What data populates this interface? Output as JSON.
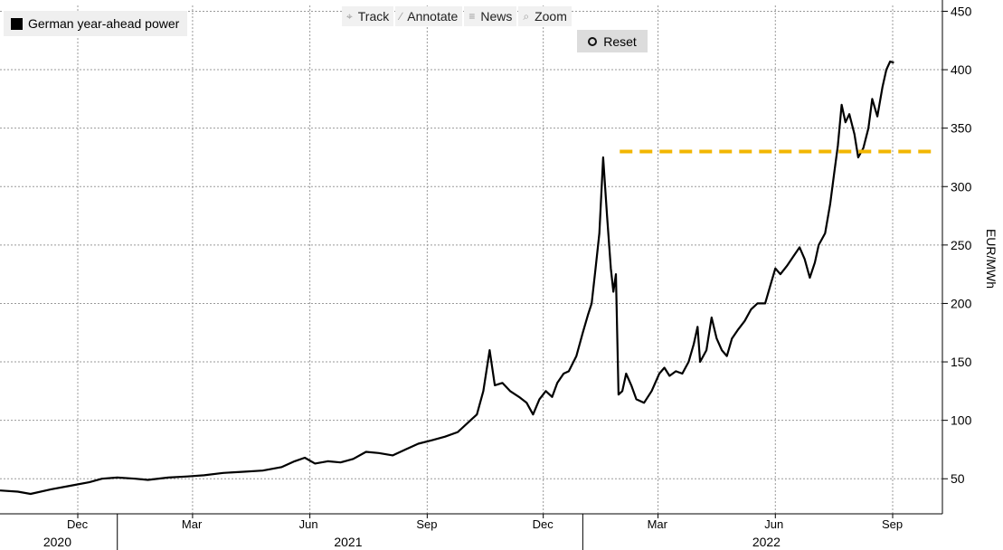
{
  "legend": {
    "label": "German year-ahead power",
    "swatch_color": "#000000"
  },
  "toolbar": [
    {
      "name": "track",
      "label": "Track",
      "icon": "crosshair-icon"
    },
    {
      "name": "annotate",
      "label": "Annotate",
      "icon": "pencil-icon"
    },
    {
      "name": "news",
      "label": "News",
      "icon": "news-icon"
    },
    {
      "name": "zoom",
      "label": "Zoom",
      "icon": "magnifier-icon"
    }
  ],
  "reset": {
    "label": "Reset",
    "icon": "reset-circle-icon"
  },
  "chart_data": {
    "type": "line",
    "ylabel": "EUR/MWh",
    "y_axis_position": "right",
    "ylim": [
      20,
      455
    ],
    "yticks": [
      50,
      100,
      150,
      200,
      250,
      300,
      350,
      400,
      450
    ],
    "xlim": [
      "2020-10-01",
      "2022-10-10"
    ],
    "x_month_ticks": [
      {
        "date": "2020-12-01",
        "label": "Dec"
      },
      {
        "date": "2021-03-01",
        "label": "Mar"
      },
      {
        "date": "2021-06-01",
        "label": "Jun"
      },
      {
        "date": "2021-09-01",
        "label": "Sep"
      },
      {
        "date": "2021-12-01",
        "label": "Dec"
      },
      {
        "date": "2022-03-01",
        "label": "Mar"
      },
      {
        "date": "2022-06-01",
        "label": "Jun"
      },
      {
        "date": "2022-09-01",
        "label": "Sep"
      }
    ],
    "x_year_labels": [
      {
        "label": "2020",
        "center": "2020-11-15"
      },
      {
        "label": "2021",
        "center": "2021-07-01"
      },
      {
        "label": "2022",
        "center": "2022-05-25"
      }
    ],
    "year_separators": [
      "2021-01-01",
      "2022-01-01"
    ],
    "grid": true,
    "line_color": "#000000",
    "series": [
      {
        "name": "German year-ahead power",
        "points": [
          [
            "2020-10-01",
            40
          ],
          [
            "2020-10-15",
            39
          ],
          [
            "2020-10-25",
            37
          ],
          [
            "2020-11-10",
            41
          ],
          [
            "2020-11-25",
            44
          ],
          [
            "2020-12-10",
            47
          ],
          [
            "2020-12-20",
            50
          ],
          [
            "2021-01-01",
            51
          ],
          [
            "2021-01-15",
            50
          ],
          [
            "2021-01-25",
            49
          ],
          [
            "2021-02-10",
            51
          ],
          [
            "2021-02-25",
            52
          ],
          [
            "2021-03-10",
            53
          ],
          [
            "2021-03-25",
            55
          ],
          [
            "2021-04-10",
            56
          ],
          [
            "2021-04-25",
            57
          ],
          [
            "2021-05-10",
            60
          ],
          [
            "2021-05-20",
            65
          ],
          [
            "2021-05-28",
            68
          ],
          [
            "2021-06-05",
            63
          ],
          [
            "2021-06-15",
            65
          ],
          [
            "2021-06-25",
            64
          ],
          [
            "2021-07-05",
            67
          ],
          [
            "2021-07-15",
            73
          ],
          [
            "2021-07-25",
            72
          ],
          [
            "2021-08-05",
            70
          ],
          [
            "2021-08-15",
            75
          ],
          [
            "2021-08-25",
            80
          ],
          [
            "2021-09-05",
            83
          ],
          [
            "2021-09-15",
            86
          ],
          [
            "2021-09-25",
            90
          ],
          [
            "2021-10-05",
            100
          ],
          [
            "2021-10-10",
            105
          ],
          [
            "2021-10-15",
            125
          ],
          [
            "2021-10-20",
            160
          ],
          [
            "2021-10-24",
            130
          ],
          [
            "2021-10-30",
            132
          ],
          [
            "2021-11-05",
            125
          ],
          [
            "2021-11-12",
            120
          ],
          [
            "2021-11-18",
            115
          ],
          [
            "2021-11-23",
            105
          ],
          [
            "2021-11-28",
            118
          ],
          [
            "2021-12-03",
            125
          ],
          [
            "2021-12-08",
            120
          ],
          [
            "2021-12-12",
            132
          ],
          [
            "2021-12-17",
            140
          ],
          [
            "2021-12-21",
            142
          ],
          [
            "2021-12-27",
            155
          ],
          [
            "2022-01-01",
            175
          ],
          [
            "2022-01-05",
            190
          ],
          [
            "2022-01-08",
            200
          ],
          [
            "2022-01-11",
            230
          ],
          [
            "2022-01-14",
            260
          ],
          [
            "2022-01-17",
            325
          ],
          [
            "2022-01-20",
            275
          ],
          [
            "2022-01-23",
            230
          ],
          [
            "2022-01-25",
            210
          ],
          [
            "2022-01-27",
            225
          ],
          [
            "2022-01-29",
            122
          ],
          [
            "2022-02-01",
            125
          ],
          [
            "2022-02-04",
            140
          ],
          [
            "2022-02-08",
            130
          ],
          [
            "2022-02-12",
            118
          ],
          [
            "2022-02-18",
            115
          ],
          [
            "2022-02-24",
            125
          ],
          [
            "2022-03-02",
            140
          ],
          [
            "2022-03-06",
            145
          ],
          [
            "2022-03-10",
            138
          ],
          [
            "2022-03-15",
            142
          ],
          [
            "2022-03-20",
            140
          ],
          [
            "2022-03-25",
            150
          ],
          [
            "2022-03-29",
            165
          ],
          [
            "2022-04-01",
            180
          ],
          [
            "2022-04-03",
            150
          ],
          [
            "2022-04-08",
            160
          ],
          [
            "2022-04-12",
            188
          ],
          [
            "2022-04-16",
            170
          ],
          [
            "2022-04-20",
            160
          ],
          [
            "2022-04-24",
            155
          ],
          [
            "2022-04-28",
            170
          ],
          [
            "2022-05-03",
            178
          ],
          [
            "2022-05-08",
            185
          ],
          [
            "2022-05-13",
            195
          ],
          [
            "2022-05-18",
            200
          ],
          [
            "2022-05-24",
            200
          ],
          [
            "2022-05-28",
            215
          ],
          [
            "2022-06-01",
            230
          ],
          [
            "2022-06-05",
            225
          ],
          [
            "2022-06-10",
            232
          ],
          [
            "2022-06-15",
            240
          ],
          [
            "2022-06-20",
            248
          ],
          [
            "2022-06-24",
            238
          ],
          [
            "2022-06-28",
            222
          ],
          [
            "2022-07-02",
            235
          ],
          [
            "2022-07-05",
            250
          ],
          [
            "2022-07-10",
            260
          ],
          [
            "2022-07-14",
            285
          ],
          [
            "2022-07-17",
            310
          ],
          [
            "2022-07-20",
            335
          ],
          [
            "2022-07-23",
            370
          ],
          [
            "2022-07-26",
            355
          ],
          [
            "2022-07-29",
            362
          ],
          [
            "2022-08-02",
            345
          ],
          [
            "2022-08-05",
            325
          ],
          [
            "2022-08-09",
            333
          ],
          [
            "2022-08-13",
            350
          ],
          [
            "2022-08-16",
            375
          ],
          [
            "2022-08-20",
            360
          ],
          [
            "2022-08-24",
            385
          ],
          [
            "2022-08-27",
            400
          ],
          [
            "2022-08-30",
            407
          ],
          [
            "2022-09-02",
            406
          ]
        ]
      }
    ],
    "annotations": [
      {
        "type": "hline",
        "y": 330,
        "x_start": "2022-01-30",
        "x_end": "2022-10-05",
        "color": "#f2b600",
        "style": "dashed"
      }
    ]
  }
}
